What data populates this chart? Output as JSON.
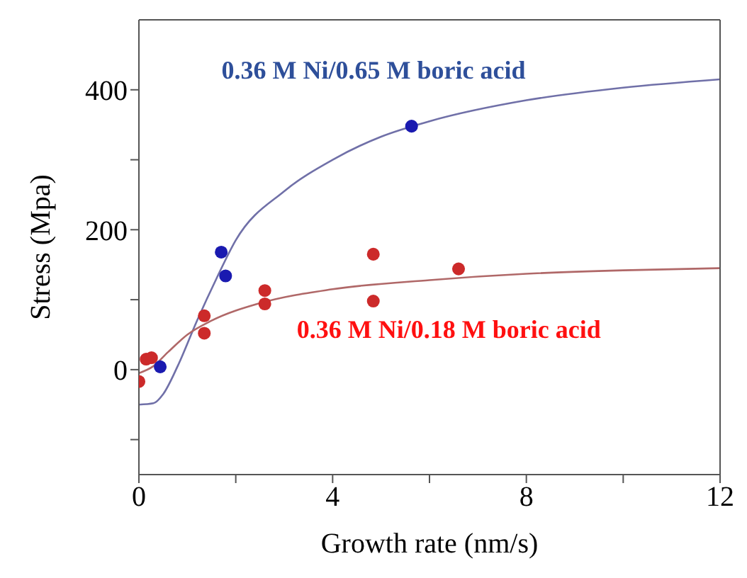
{
  "chart_data": {
    "type": "scatter",
    "xlabel": "Growth rate (nm/s)",
    "ylabel": "Stress (Mpa)",
    "xlim": [
      0,
      12
    ],
    "xticks": [
      0,
      {
        "value": 2,
        "label": null
      },
      4,
      {
        "value": 6,
        "label": null
      },
      8,
      {
        "value": 10,
        "label": null
      },
      12
    ],
    "ylim": [
      -150,
      500
    ],
    "yticks": [
      {
        "value": -100,
        "label": null
      },
      0,
      {
        "value": 100,
        "label": null
      },
      200,
      {
        "value": 300,
        "label": null
      },
      400
    ],
    "grid": false,
    "legend": false,
    "marker": "circle",
    "series": [
      {
        "name": "0.36 M Ni/0.65 M boric acid",
        "color": "#1a1ab0",
        "x": [
          0.44,
          1.7,
          1.79,
          5.63
        ],
        "values": [
          4,
          168,
          134,
          348
        ]
      },
      {
        "type": "line",
        "color": "#7070a8",
        "marker": "none",
        "x": [
          0,
          0.3,
          0.5,
          0.8,
          1.2,
          1.6,
          2,
          3,
          4,
          5,
          6,
          8,
          10,
          12
        ],
        "values": [
          -50,
          -48,
          -35,
          5,
          70,
          130,
          185,
          255,
          300,
          333,
          355,
          385,
          403,
          415
        ]
      },
      {
        "name": "0.36 M Ni/0.18 M boric acid",
        "color": "#cc2a2a",
        "x": [
          0,
          0.15,
          0.26,
          1.35,
          1.35,
          2.6,
          2.6,
          4.84,
          4.84,
          6.6
        ],
        "values": [
          -17,
          15,
          17,
          77,
          52,
          113,
          94,
          165,
          98,
          144
        ]
      },
      {
        "type": "line",
        "color": "#b06868",
        "marker": "none",
        "x": [
          0,
          0.3,
          0.6,
          1,
          1.5,
          2.5,
          4,
          6,
          8,
          10,
          12
        ],
        "values": [
          -5,
          5,
          25,
          50,
          70,
          95,
          115,
          128,
          137,
          142,
          145
        ]
      }
    ]
  }
}
